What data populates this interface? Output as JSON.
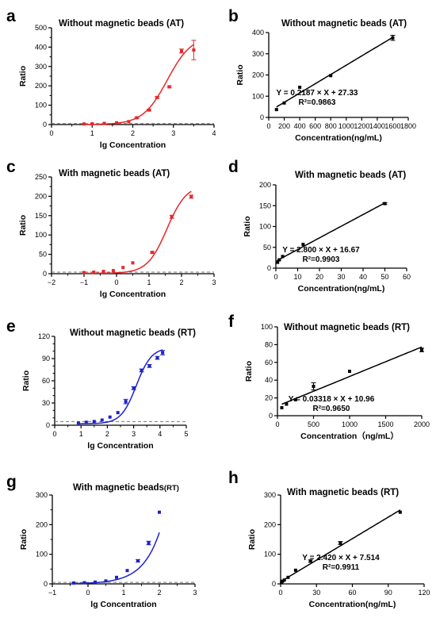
{
  "chart_data": [
    {
      "panel": "a",
      "type": "scatter",
      "title": "Without magnetic beads (AT)",
      "xlabel": "lg Concentration",
      "ylabel": "Ratio",
      "xlim": [
        0,
        4
      ],
      "ylim": [
        0,
        500
      ],
      "xticks": [
        0,
        1,
        2,
        3,
        4
      ],
      "yticks": [
        0,
        100,
        200,
        300,
        400,
        500
      ],
      "x_minor": 1,
      "y_minor": 1,
      "color": "#e8262b",
      "fit": "sigmoid",
      "fit_range": [
        0.8,
        3.5
      ],
      "fit_params": {
        "bottom": 0,
        "top": 460,
        "mid": 2.85,
        "slope": 1.45
      },
      "baseline": 5,
      "x": [
        0.8,
        1.0,
        1.3,
        1.6,
        1.9,
        2.1,
        2.4,
        2.6,
        2.9,
        3.2,
        3.5
      ],
      "y": [
        3,
        4,
        6,
        9,
        15,
        35,
        75,
        140,
        195,
        380,
        385
      ],
      "err": [
        0,
        0,
        0,
        0,
        0,
        3,
        4,
        5,
        5,
        10,
        50
      ]
    },
    {
      "panel": "b",
      "type": "scatter",
      "title": "Without magnetic beads (AT)",
      "xlabel": "Concentration(ng/mL)",
      "ylabel": "Ratio",
      "xlim": [
        0,
        1800
      ],
      "ylim": [
        0,
        400
      ],
      "xticks": [
        0,
        200,
        400,
        600,
        800,
        1000,
        1200,
        1400,
        1600,
        1800
      ],
      "yticks": [
        0,
        100,
        200,
        300,
        400
      ],
      "color": "#000000",
      "fit": "linear",
      "fit_range": [
        100,
        1600
      ],
      "slope": 0.2187,
      "intercept": 27.33,
      "x": [
        100,
        200,
        400,
        800,
        1600
      ],
      "y": [
        37,
        68,
        142,
        197,
        375
      ],
      "err": [
        0,
        0,
        0,
        0,
        12
      ],
      "equation": "Y = 0.2187 × X + 27.33",
      "r2": "R²=0.9863"
    },
    {
      "panel": "c",
      "type": "scatter",
      "title": "With magnetic beads (AT)",
      "xlabel": "lg Concentration",
      "ylabel": "Ratio",
      "xlim": [
        -2,
        3
      ],
      "ylim": [
        0,
        250
      ],
      "xticks": [
        -2,
        -1,
        0,
        1,
        2,
        3
      ],
      "yticks": [
        0,
        50,
        100,
        150,
        200,
        250
      ],
      "x_minor": 1,
      "y_minor": 1,
      "color": "#e8262b",
      "fit": "sigmoid",
      "fit_range": [
        -1,
        2.3
      ],
      "fit_params": {
        "bottom": 1,
        "top": 230,
        "mid": 1.55,
        "slope": 1.45
      },
      "baseline": 4,
      "x": [
        -1.0,
        -0.7,
        -0.4,
        -0.1,
        0.2,
        0.5,
        1.1,
        1.7,
        2.3
      ],
      "y": [
        3,
        4,
        6,
        8,
        16,
        28,
        55,
        147,
        199
      ],
      "err": [
        0,
        0,
        0,
        0,
        0,
        0,
        2,
        4,
        4
      ]
    },
    {
      "panel": "d",
      "type": "scatter",
      "title": "With magnetic beads (AT)",
      "xlabel": "Concentration(ng/mL)",
      "ylabel": "Ratio",
      "xlim": [
        0,
        60
      ],
      "ylim": [
        0,
        200
      ],
      "xticks": [
        0,
        10,
        20,
        30,
        40,
        50,
        60
      ],
      "yticks": [
        0,
        50,
        100,
        150,
        200
      ],
      "color": "#000000",
      "fit": "linear",
      "fit_range": [
        0.5,
        50
      ],
      "slope": 2.8,
      "intercept": 16.67,
      "x": [
        0.8,
        1.6,
        3.1,
        12.5,
        50
      ],
      "y": [
        14,
        20,
        28,
        57,
        155
      ],
      "err": [
        0,
        0,
        0,
        0,
        2
      ],
      "equation": "Y = 2.800 × X + 16.67",
      "r2": "R²=0.9903"
    },
    {
      "panel": "e",
      "type": "scatter",
      "title": "Without magnetic beads (RT)",
      "xlabel": "lg Concentration",
      "ylabel": "Ratio",
      "xlim": [
        0,
        5
      ],
      "ylim": [
        0,
        120
      ],
      "xticks": [
        0,
        1,
        2,
        3,
        4,
        5
      ],
      "yticks": [
        0,
        30,
        60,
        90,
        120
      ],
      "x_minor": 1,
      "y_minor": 2,
      "color": "#1f22c8",
      "fit": "sigmoid",
      "fit_range": [
        0.9,
        4.1
      ],
      "fit_params": {
        "bottom": 2,
        "top": 105,
        "mid": 3.1,
        "slope": 1.5
      },
      "baseline": 5,
      "x": [
        0.9,
        1.2,
        1.5,
        1.8,
        2.1,
        2.4,
        2.7,
        3.0,
        3.3,
        3.6,
        3.9,
        4.1
      ],
      "y": [
        3,
        4,
        5,
        7,
        11,
        17,
        32,
        50,
        74,
        80,
        91,
        98
      ],
      "err": [
        0,
        0,
        0,
        0,
        0,
        0,
        3,
        2,
        2,
        2,
        2,
        3
      ]
    },
    {
      "panel": "f",
      "type": "scatter",
      "title": "Without magnetic beads (RT)",
      "xlabel": "Concentration（ng/mL）",
      "ylabel": "Ratio",
      "xlim": [
        0,
        2000
      ],
      "ylim": [
        0,
        100
      ],
      "xticks": [
        0,
        500,
        1000,
        1500,
        2000
      ],
      "yticks": [
        0,
        20,
        40,
        60,
        80,
        100
      ],
      "color": "#000000",
      "fit": "linear",
      "fit_range": [
        60,
        2000
      ],
      "slope": 0.03318,
      "intercept": 10.96,
      "x": [
        60,
        125,
        250,
        500,
        1000,
        2000
      ],
      "y": [
        9,
        13,
        18,
        33,
        50,
        74
      ],
      "err": [
        0,
        0,
        0,
        4,
        0,
        2
      ],
      "equation": "Y = 0.03318 × X + 10.96",
      "r2": "R²=0.9650"
    },
    {
      "panel": "g",
      "type": "scatter",
      "title": "With magnetic beads",
      "title_suffix": "(RT)",
      "xlabel": "lg Concentration",
      "ylabel": "Ratio",
      "xlim": [
        -1,
        3
      ],
      "ylim": [
        0,
        300
      ],
      "xticks": [
        -1,
        0,
        1,
        2,
        3
      ],
      "yticks": [
        0,
        100,
        200,
        300
      ],
      "x_minor": 1,
      "y_minor": 1,
      "color": "#1f22c8",
      "fit": "exp",
      "fit_range": [
        -0.4,
        2.0
      ],
      "fit_params": {
        "a": 1.2,
        "b": 0.9,
        "c": 2.75
      },
      "baseline": 5,
      "x": [
        -0.4,
        -0.1,
        0.2,
        0.5,
        0.8,
        1.1,
        1.4,
        1.7,
        2.0
      ],
      "y": [
        3,
        4,
        6,
        10,
        22,
        45,
        78,
        138,
        242
      ],
      "err": [
        0,
        0,
        0,
        0,
        0,
        0,
        4,
        6,
        0
      ]
    },
    {
      "panel": "h",
      "type": "scatter",
      "title": "With magnetic beads (RT)",
      "xlabel": "Concentration(ng/mL)",
      "ylabel": "Ratio",
      "xlim": [
        0,
        120
      ],
      "ylim": [
        0,
        300
      ],
      "xticks": [
        0,
        30,
        60,
        90,
        120
      ],
      "yticks": [
        0,
        100,
        200,
        300
      ],
      "color": "#000000",
      "fit": "linear",
      "fit_range": [
        0.5,
        100
      ],
      "slope": 2.42,
      "intercept": 7.514,
      "x": [
        0.8,
        1.6,
        3.1,
        6.25,
        12.5,
        25,
        50,
        100
      ],
      "y": [
        5,
        9,
        13,
        22,
        46,
        77,
        138,
        242
      ],
      "err": [
        0,
        0,
        0,
        0,
        0,
        4,
        5,
        0
      ],
      "equation": "Y = 2.420 × X + 7.514",
      "r2": "R²=0.9911"
    }
  ]
}
